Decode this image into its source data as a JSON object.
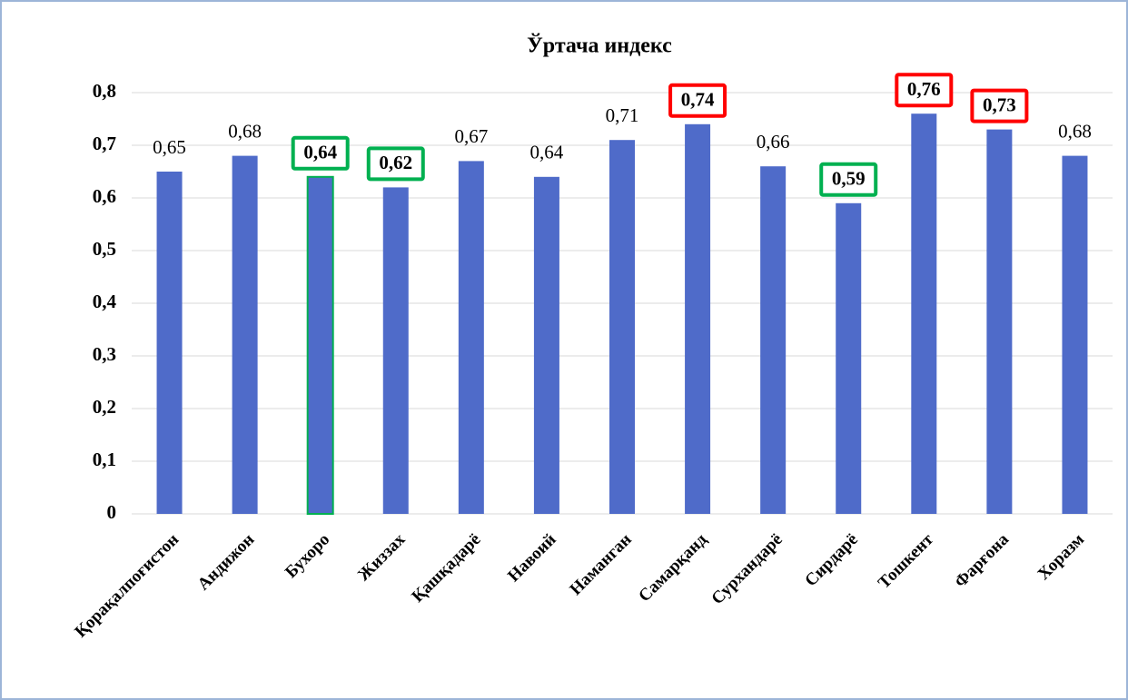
{
  "chart_data": {
    "type": "bar",
    "title": "Ўртача индекс",
    "categories": [
      "Қорақалпоғистон",
      "Андижон",
      "Бухоро",
      "Жиззах",
      "Қашқадарё",
      "Навоий",
      "Наманган",
      "Самарқанд",
      "Сурхандарё",
      "Сирдарё",
      "Тошкент",
      "Фарғона",
      "Хоразм"
    ],
    "values": [
      0.65,
      0.68,
      0.64,
      0.62,
      0.67,
      0.64,
      0.71,
      0.74,
      0.66,
      0.59,
      0.76,
      0.73,
      0.68
    ],
    "value_labels": [
      "0,65",
      "0,68",
      "0,64",
      "0,62",
      "0,67",
      "0,64",
      "0,71",
      "0,74",
      "0,66",
      "0,59",
      "0,76",
      "0,73",
      "0,68"
    ],
    "color": "#4f6bc9",
    "highlight_colors": [
      null,
      null,
      "#00b050",
      "#00b050",
      null,
      null,
      null,
      "#ff0000",
      null,
      "#00b050",
      "#ff0000",
      "#ff0000",
      null
    ],
    "bar_outline_colors": [
      null,
      null,
      "#00b050",
      null,
      null,
      null,
      null,
      null,
      null,
      null,
      null,
      null,
      null
    ],
    "ylim": [
      0,
      0.8
    ],
    "yticks": [
      0,
      {
        "value": 0.1,
        "label": "0,1"
      },
      {
        "value": 0.2,
        "label": "0,2"
      },
      {
        "value": 0.3,
        "label": "0,3"
      },
      {
        "value": 0.4,
        "label": "0,4"
      },
      {
        "value": 0.5,
        "label": "0,5"
      },
      {
        "value": 0.6,
        "label": "0,6"
      },
      {
        "value": 0.7,
        "label": "0,7"
      },
      {
        "value": 0.8,
        "label": "0,8"
      }
    ],
    "grid": true
  }
}
